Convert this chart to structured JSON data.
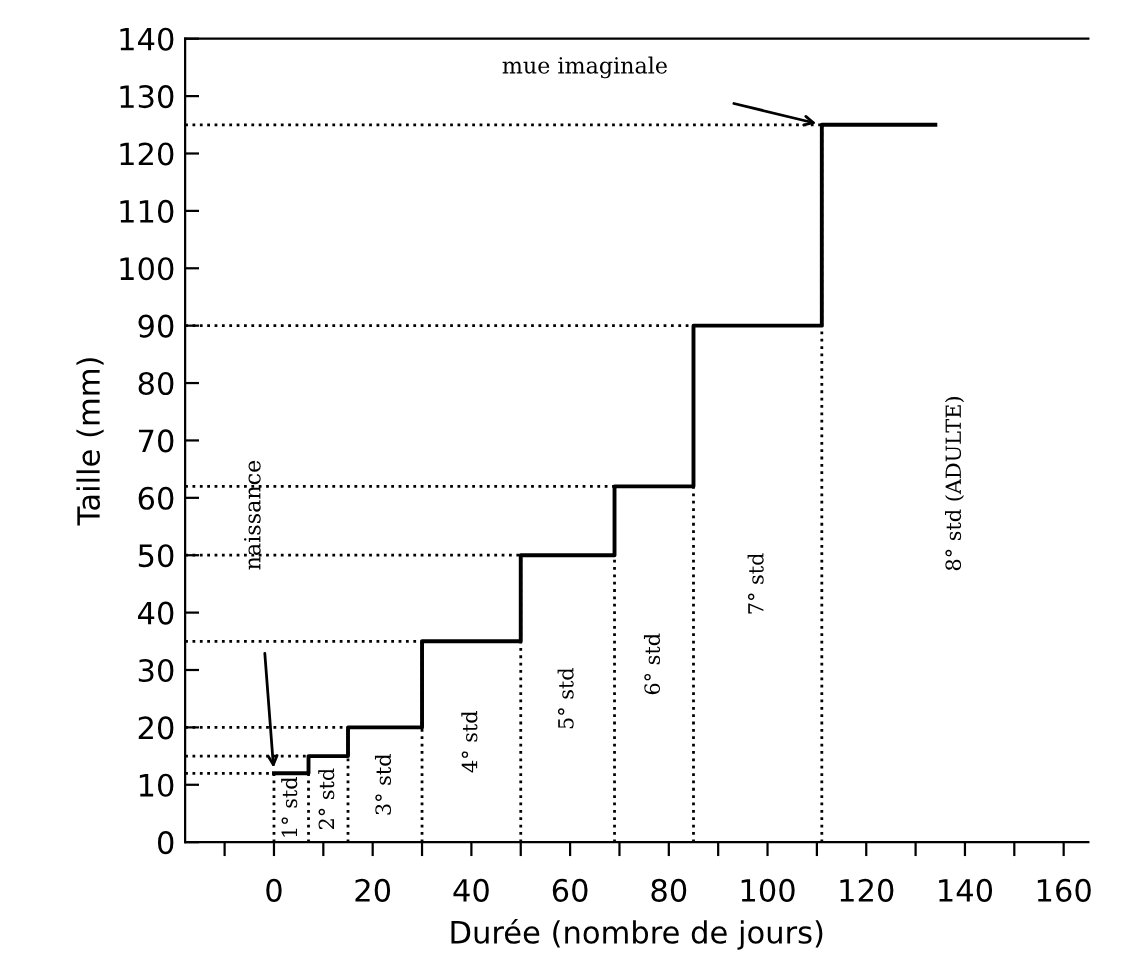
{
  "chart_data": {
    "type": "step",
    "xlabel": "Durée (nombre de jours)",
    "ylabel": "Taille (mm)",
    "x": [
      0,
      7,
      15,
      30,
      50,
      69,
      85,
      111,
      134
    ],
    "series": [
      {
        "color": "#000000",
        "values": [
          12,
          15,
          20,
          35,
          50,
          62,
          90,
          125,
          125
        ]
      }
    ],
    "xlim": [
      -18,
      165
    ],
    "ylim": [
      0,
      140
    ],
    "xticks": [
      {
        "value": -10,
        "label": null
      },
      0,
      {
        "value": 10,
        "label": null
      },
      20,
      {
        "value": 30,
        "label": null
      },
      40,
      {
        "value": 50,
        "label": null
      },
      60,
      {
        "value": 70,
        "label": null
      },
      80,
      {
        "value": 90,
        "label": null
      },
      100,
      {
        "value": 110,
        "label": null
      },
      120,
      {
        "value": 130,
        "label": null
      },
      140,
      {
        "value": 150,
        "label": null
      },
      160
    ],
    "yticks": [
      0,
      10,
      20,
      30,
      40,
      50,
      60,
      70,
      80,
      90,
      100,
      110,
      120,
      130,
      140
    ],
    "ref_lines": [
      {
        "axis": "y",
        "value": 12,
        "line_style": "dotted"
      },
      {
        "axis": "y",
        "value": 15,
        "line_style": "dotted"
      },
      {
        "axis": "y",
        "value": 20,
        "line_style": "dotted"
      },
      {
        "axis": "y",
        "value": 35,
        "line_style": "dotted"
      },
      {
        "axis": "y",
        "value": 50,
        "line_style": "dotted"
      },
      {
        "axis": "y",
        "value": 62,
        "line_style": "dotted"
      },
      {
        "axis": "y",
        "value": 90,
        "line_style": "dotted"
      },
      {
        "axis": "y",
        "value": 125,
        "line_style": "dotted"
      },
      {
        "axis": "x",
        "value": 0,
        "line_style": "dotted"
      },
      {
        "axis": "x",
        "value": 7,
        "line_style": "dotted"
      },
      {
        "axis": "x",
        "value": 15,
        "line_style": "dotted"
      },
      {
        "axis": "x",
        "value": 30,
        "line_style": "dotted"
      },
      {
        "axis": "x",
        "value": 50,
        "line_style": "dotted"
      },
      {
        "axis": "x",
        "value": 69,
        "line_style": "dotted"
      },
      {
        "axis": "x",
        "value": 85,
        "line_style": "dotted"
      },
      {
        "axis": "x",
        "value": 111,
        "line_style": "dotted"
      }
    ],
    "annotations": [
      "naissance",
      "mue imaginale",
      "1° std",
      "2° std",
      "3° std",
      "4° std",
      "5° std",
      "6° std",
      "7° std",
      "8° std (ADULTE)"
    ],
    "grid": false,
    "line_style": "solid",
    "marker": "none"
  }
}
